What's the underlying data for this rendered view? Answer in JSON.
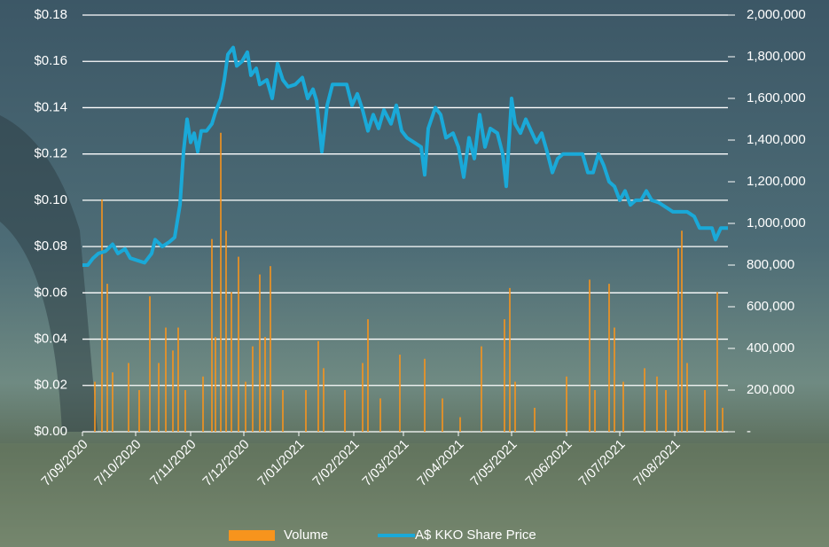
{
  "chart_data": {
    "type": "bar-line",
    "xlim": [
      "2020-09-07",
      "2021-09-06"
    ],
    "xticks": [
      {
        "value": "2020-09-07",
        "label": "7/09/2020"
      },
      {
        "value": "2020-10-07",
        "label": "7/10/2020"
      },
      {
        "value": "2020-11-07",
        "label": "7/11/2020"
      },
      {
        "value": "2020-12-07",
        "label": "7/12/2020"
      },
      {
        "value": "2021-01-07",
        "label": "7/01/2021"
      },
      {
        "value": "2021-02-07",
        "label": "7/02/2021"
      },
      {
        "value": "2021-03-07",
        "label": "7/03/2021"
      },
      {
        "value": "2021-04-07",
        "label": "7/04/2021"
      },
      {
        "value": "2021-05-07",
        "label": "7/05/2021"
      },
      {
        "value": "2021-06-07",
        "label": "7/06/2021"
      },
      {
        "value": "2021-07-07",
        "label": "7/07/2021"
      },
      {
        "value": "2021-08-07",
        "label": "7/08/2021"
      }
    ],
    "ylim": [
      0,
      0.18
    ],
    "yticks": [
      {
        "value": 0,
        "label": "$0.00"
      },
      {
        "value": 0.02,
        "label": "$0.02"
      },
      {
        "value": 0.04,
        "label": "$0.04"
      },
      {
        "value": 0.06,
        "label": "$0.06"
      },
      {
        "value": 0.08,
        "label": "$0.08"
      },
      {
        "value": 0.1,
        "label": "$0.10"
      },
      {
        "value": 0.12,
        "label": "$0.12"
      },
      {
        "value": 0.14,
        "label": "$0.14"
      },
      {
        "value": 0.16,
        "label": "$0.16"
      },
      {
        "value": 0.18,
        "label": "$0.18"
      }
    ],
    "y2lim": [
      0,
      2000000
    ],
    "y2ticks": [
      {
        "value": 0,
        "label": "-"
      },
      {
        "value": 200000,
        "label": "200,000"
      },
      {
        "value": 400000,
        "label": "400,000"
      },
      {
        "value": 600000,
        "label": "600,000"
      },
      {
        "value": 800000,
        "label": "800,000"
      },
      {
        "value": 1000000,
        "label": "1,000,000"
      },
      {
        "value": 1200000,
        "label": "1,200,000"
      },
      {
        "value": 1400000,
        "label": "1,400,000"
      },
      {
        "value": 1600000,
        "label": "1,600,000"
      },
      {
        "value": 1800000,
        "label": "1,800,000"
      },
      {
        "value": 2000000,
        "label": "2,000,000"
      }
    ],
    "grid": true,
    "legend": "bottom",
    "series": [
      {
        "name": "Volume",
        "type": "bar",
        "axis": "y2",
        "color": "#f7941d",
        "x": [
          "2020-09-14",
          "2020-09-18",
          "2020-09-21",
          "2020-09-24",
          "2020-10-03",
          "2020-10-09",
          "2020-10-15",
          "2020-10-20",
          "2020-10-24",
          "2020-10-28",
          "2020-10-31",
          "2020-11-04",
          "2020-11-14",
          "2020-11-19",
          "2020-11-21",
          "2020-11-24",
          "2020-11-27",
          "2020-11-30",
          "2020-12-04",
          "2020-12-08",
          "2020-12-12",
          "2020-12-16",
          "2020-12-19",
          "2020-12-22",
          "2020-12-29",
          "2021-01-11",
          "2021-01-18",
          "2021-01-21",
          "2021-02-02",
          "2021-02-12",
          "2021-02-15",
          "2021-02-22",
          "2021-03-05",
          "2021-03-19",
          "2021-03-29",
          "2021-04-08",
          "2021-04-20",
          "2021-05-03",
          "2021-05-06",
          "2021-05-09",
          "2021-05-20",
          "2021-06-07",
          "2021-06-20",
          "2021-06-23",
          "2021-07-01",
          "2021-07-04",
          "2021-07-09",
          "2021-07-21",
          "2021-07-28",
          "2021-08-02",
          "2021-08-09",
          "2021-08-11",
          "2021-08-14",
          "2021-08-24",
          "2021-08-31",
          "2021-09-03"
        ],
        "values": [
          240000,
          1115000,
          710000,
          285000,
          330000,
          200000,
          650000,
          330000,
          500000,
          390000,
          500000,
          200000,
          265000,
          925000,
          455000,
          1435000,
          965000,
          670000,
          840000,
          240000,
          410000,
          755000,
          455000,
          795000,
          200000,
          200000,
          435000,
          305000,
          200000,
          330000,
          540000,
          160000,
          370000,
          350000,
          160000,
          70000,
          410000,
          540000,
          690000,
          240000,
          115000,
          265000,
          730000,
          200000,
          710000,
          500000,
          240000,
          305000,
          265000,
          200000,
          880000,
          965000,
          330000,
          200000,
          670000,
          115000
        ]
      },
      {
        "name": "A$ KKO Share Price",
        "type": "line",
        "color": "#1aa9d8",
        "x": [
          "2020-09-07",
          "2020-09-10",
          "2020-09-13",
          "2020-09-16",
          "2020-09-20",
          "2020-09-24",
          "2020-09-27",
          "2020-10-01",
          "2020-10-04",
          "2020-10-08",
          "2020-10-12",
          "2020-10-16",
          "2020-10-18",
          "2020-10-22",
          "2020-10-26",
          "2020-10-29",
          "2020-11-01",
          "2020-11-03",
          "2020-11-05",
          "2020-11-07",
          "2020-11-09",
          "2020-11-11",
          "2020-11-13",
          "2020-11-16",
          "2020-11-19",
          "2020-11-21",
          "2020-11-24",
          "2020-11-26",
          "2020-11-28",
          "2020-12-01",
          "2020-12-03",
          "2020-12-06",
          "2020-12-09",
          "2020-12-11",
          "2020-12-14",
          "2020-12-16",
          "2020-12-20",
          "2020-12-23",
          "2020-12-26",
          "2020-12-29",
          "2021-01-01",
          "2021-01-05",
          "2021-01-09",
          "2021-01-12",
          "2021-01-15",
          "2021-01-17",
          "2021-01-20",
          "2021-01-23",
          "2021-01-26",
          "2021-01-30",
          "2021-02-03",
          "2021-02-06",
          "2021-02-09",
          "2021-02-12",
          "2021-02-15",
          "2021-02-18",
          "2021-02-21",
          "2021-02-24",
          "2021-02-28",
          "2021-03-03",
          "2021-03-06",
          "2021-03-09",
          "2021-03-13",
          "2021-03-17",
          "2021-03-19",
          "2021-03-21",
          "2021-03-25",
          "2021-03-28",
          "2021-03-31",
          "2021-04-04",
          "2021-04-07",
          "2021-04-10",
          "2021-04-13",
          "2021-04-16",
          "2021-04-19",
          "2021-04-22",
          "2021-04-25",
          "2021-04-29",
          "2021-05-02",
          "2021-05-04",
          "2021-05-07",
          "2021-05-09",
          "2021-05-12",
          "2021-05-15",
          "2021-05-18",
          "2021-05-21",
          "2021-05-24",
          "2021-05-27",
          "2021-05-30",
          "2021-06-02",
          "2021-06-05",
          "2021-06-08",
          "2021-06-12",
          "2021-06-16",
          "2021-06-19",
          "2021-06-22",
          "2021-06-25",
          "2021-06-28",
          "2021-07-01",
          "2021-07-04",
          "2021-07-07",
          "2021-07-10",
          "2021-07-13",
          "2021-07-16",
          "2021-07-19",
          "2021-07-22",
          "2021-07-25",
          "2021-07-29",
          "2021-08-02",
          "2021-08-06",
          "2021-08-10",
          "2021-08-14",
          "2021-08-18",
          "2021-08-21",
          "2021-08-25",
          "2021-08-28",
          "2021-08-30",
          "2021-09-02",
          "2021-09-06"
        ],
        "values": [
          0.072,
          0.072,
          0.075,
          0.077,
          0.078,
          0.081,
          0.077,
          0.079,
          0.075,
          0.074,
          0.073,
          0.077,
          0.083,
          0.08,
          0.082,
          0.084,
          0.098,
          0.121,
          0.135,
          0.125,
          0.129,
          0.121,
          0.13,
          0.13,
          0.133,
          0.138,
          0.144,
          0.152,
          0.163,
          0.166,
          0.158,
          0.16,
          0.164,
          0.154,
          0.157,
          0.15,
          0.152,
          0.144,
          0.159,
          0.152,
          0.149,
          0.15,
          0.153,
          0.144,
          0.148,
          0.143,
          0.121,
          0.141,
          0.15,
          0.15,
          0.15,
          0.141,
          0.146,
          0.139,
          0.13,
          0.137,
          0.131,
          0.139,
          0.133,
          0.141,
          0.13,
          0.127,
          0.125,
          0.123,
          0.111,
          0.131,
          0.14,
          0.137,
          0.127,
          0.129,
          0.123,
          0.11,
          0.127,
          0.118,
          0.137,
          0.123,
          0.131,
          0.129,
          0.12,
          0.106,
          0.144,
          0.133,
          0.129,
          0.135,
          0.13,
          0.125,
          0.129,
          0.121,
          0.112,
          0.118,
          0.12,
          0.12,
          0.12,
          0.12,
          0.112,
          0.112,
          0.12,
          0.115,
          0.108,
          0.106,
          0.1,
          0.104,
          0.098,
          0.1,
          0.1,
          0.104,
          0.1,
          0.099,
          0.097,
          0.095,
          0.095,
          0.095,
          0.093,
          0.088,
          0.088,
          0.088,
          0.083,
          0.088,
          0.088
        ]
      }
    ]
  }
}
